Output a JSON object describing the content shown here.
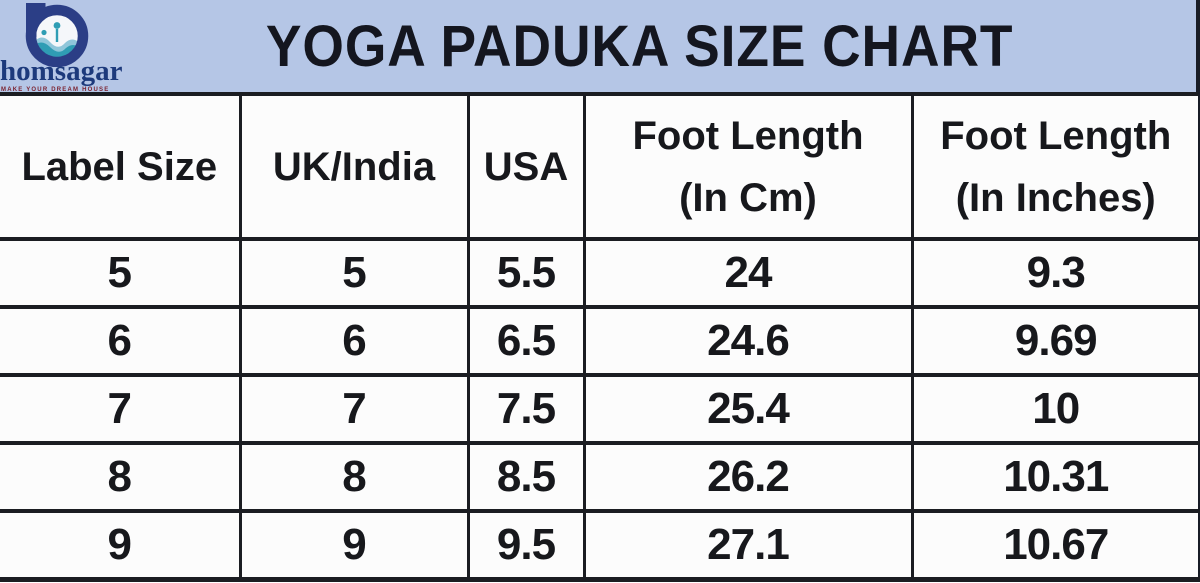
{
  "brand": {
    "name": "homsagar",
    "tagline": "MAKE YOUR DREAM HOUSE",
    "logo_colors": {
      "ring_navy": "#2b3e86",
      "wave_teal": "#2f9db4",
      "wave_light": "#8fc6da",
      "text_navy": "#1d3a7c"
    }
  },
  "header": {
    "title": "YOGA PADUKA SIZE CHART",
    "background": "#b5c6e6",
    "text_color": "#14161f"
  },
  "table_display": {
    "header_lines": [
      {
        "line1": "Label Size",
        "line2": ""
      },
      {
        "line1": "UK/India",
        "line2": ""
      },
      {
        "line1": "USA",
        "line2": ""
      },
      {
        "line1": "Foot Length",
        "line2": "(In Cm)"
      },
      {
        "line1": "Foot Length",
        "line2": "(In Inches)"
      }
    ],
    "border_color": "#1b1d22",
    "cell_background": "#fcfcfc"
  },
  "chart_data": {
    "type": "table",
    "title": "YOGA PADUKA SIZE CHART",
    "columns": [
      "Label Size",
      "UK/India",
      "USA",
      "Foot Length (In Cm)",
      "Foot Length (In Inches)"
    ],
    "rows": [
      [
        "5",
        "5",
        "5.5",
        "24",
        "9.3"
      ],
      [
        "6",
        "6",
        "6.5",
        "24.6",
        "9.69"
      ],
      [
        "7",
        "7",
        "7.5",
        "25.4",
        "10"
      ],
      [
        "8",
        "8",
        "8.5",
        "26.2",
        "10.31"
      ],
      [
        "9",
        "9",
        "9.5",
        "27.1",
        "10.67"
      ]
    ]
  }
}
